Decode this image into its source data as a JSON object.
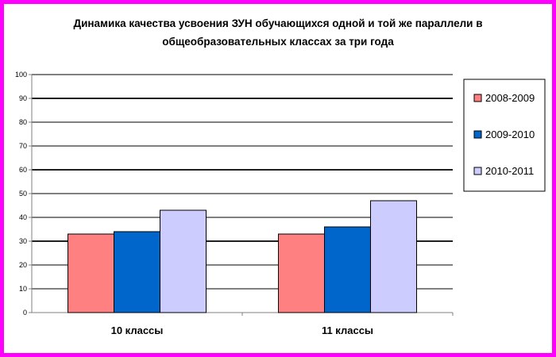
{
  "chart_data": {
    "type": "bar",
    "title_line1": "Динамика  качества усвоения ЗУН обучающихся одной и той же параллели в",
    "title_line2": "общеобразовательных классах  за три года",
    "categories": [
      "10 классы",
      "11 классы"
    ],
    "series": [
      {
        "name": "2008-2009",
        "values": [
          33,
          33
        ],
        "color": "#ff8080"
      },
      {
        "name": "2009-2010",
        "values": [
          34,
          36
        ],
        "color": "#0066cc"
      },
      {
        "name": "2010-2011",
        "values": [
          43,
          47
        ],
        "color": "#ccccff"
      }
    ],
    "ylim": [
      0,
      100
    ],
    "yticks": [
      0,
      10,
      20,
      30,
      40,
      50,
      60,
      70,
      80,
      90,
      100
    ],
    "grid": true,
    "legend_position": "right"
  }
}
